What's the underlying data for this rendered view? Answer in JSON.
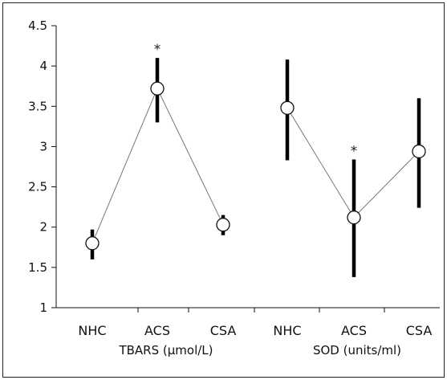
{
  "chart_data": {
    "type": "line",
    "ylim": [
      1,
      4.5
    ],
    "yticks": [
      "1",
      "1.5",
      "2",
      "2.5",
      "3",
      "3.5",
      "4",
      "4.5"
    ],
    "grid": false,
    "groups": [
      {
        "label": "TBARS (µmol/L)",
        "categories": [
          "NHC",
          "ACS",
          "CSA"
        ],
        "values": [
          1.8,
          3.72,
          2.03
        ],
        "err_low": [
          1.6,
          3.3,
          1.9
        ],
        "err_high": [
          1.97,
          4.1,
          2.15
        ],
        "annotations": [
          "",
          "*",
          ""
        ]
      },
      {
        "label": "SOD (units/ml)",
        "categories": [
          "NHC",
          "ACS",
          "CSA"
        ],
        "values": [
          3.48,
          2.12,
          2.94
        ],
        "err_low": [
          2.83,
          1.38,
          2.24
        ],
        "err_high": [
          4.08,
          2.84,
          3.6
        ],
        "annotations": [
          "",
          "*",
          ""
        ]
      }
    ]
  }
}
